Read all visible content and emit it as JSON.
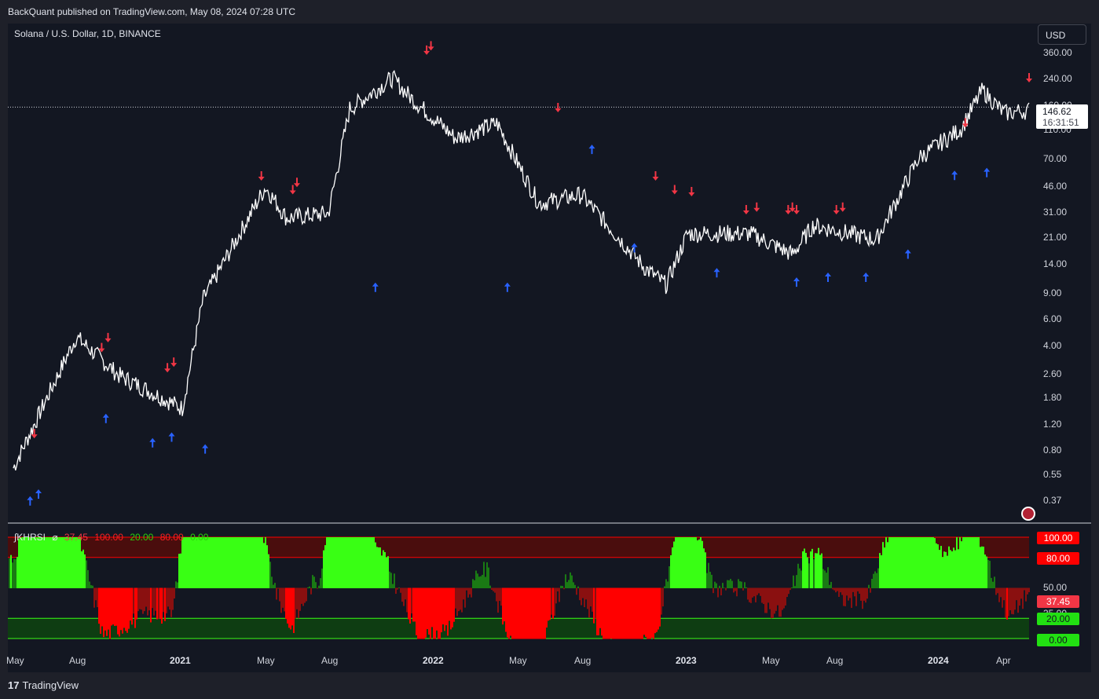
{
  "header": {
    "published": "BackQuant published on TradingView.com, May 08, 2024 07:28 UTC"
  },
  "symbol": {
    "title": "Solana / U.S. Dollar, 1D, BINANCE"
  },
  "currency": "USD",
  "price_axis": [
    "360.00",
    "240.00",
    "160.00",
    "110.00",
    "70.00",
    "46.00",
    "31.00",
    "21.00",
    "14.00",
    "9.00",
    "6.00",
    "4.00",
    "2.60",
    "1.80",
    "1.20",
    "0.80",
    "0.55",
    "0.37"
  ],
  "last_price": {
    "value": "146.62",
    "countdown": "16:31:51"
  },
  "indicator": {
    "name": "∫KHRSI",
    "params_icon": "⌀",
    "values": [
      "37.45",
      "100.00",
      "20.00",
      "80.00",
      "0.00"
    ],
    "colors": [
      "#f23645",
      "#ff1f1f",
      "#2ad10a",
      "#ff1f1f",
      "#2ad10a"
    ],
    "axis": {
      "hundred": "100.00",
      "eighty": "80.00",
      "fifty": "50.00",
      "current": "37.45",
      "thirtyfive": "35.00",
      "twenty": "20.00",
      "zero": "0.00"
    }
  },
  "time_axis": [
    "May",
    "Aug",
    "2021",
    "May",
    "Aug",
    "2022",
    "May",
    "Aug",
    "2023",
    "May",
    "Aug",
    "2024",
    "Apr"
  ],
  "branding": {
    "logo": "17",
    "name": "TradingView"
  },
  "colors": {
    "background": "#131722",
    "price_line": "#ffffff",
    "bull": "#39ff14",
    "bear": "#ff0000",
    "up_arrow": "#2962ff",
    "down_arrow": "#f23645"
  },
  "chart_data": {
    "type": "line",
    "title": "Solana / U.S. Dollar, 1D, BINANCE",
    "x": [
      "2020-05",
      "2020-08",
      "2020-10",
      "2021-01",
      "2021-02",
      "2021-05",
      "2021-06",
      "2021-08",
      "2021-09",
      "2021-11",
      "2021-12",
      "2022-02",
      "2022-04",
      "2022-06",
      "2022-08",
      "2022-11",
      "2022-12",
      "2023-01",
      "2023-04",
      "2023-06",
      "2023-07",
      "2023-10",
      "2023-12",
      "2024-02",
      "2024-03",
      "2024-04",
      "2024-05"
    ],
    "series": [
      {
        "values": [
          0.6,
          4.5,
          2.5,
          1.5,
          8,
          45,
          28,
          30,
          150,
          240,
          170,
          95,
          120,
          35,
          40,
          13,
          10,
          22,
          22,
          16,
          25,
          20,
          70,
          110,
          200,
          140,
          146.62
        ]
      }
    ],
    "ylim": [
      0.3,
      420
    ],
    "yscale": "log",
    "oscillator": {
      "name": "∫KHRSI",
      "ylim": [
        0,
        100
      ],
      "levels": [
        100,
        80,
        50,
        20,
        0
      ],
      "last": 37.45
    }
  }
}
